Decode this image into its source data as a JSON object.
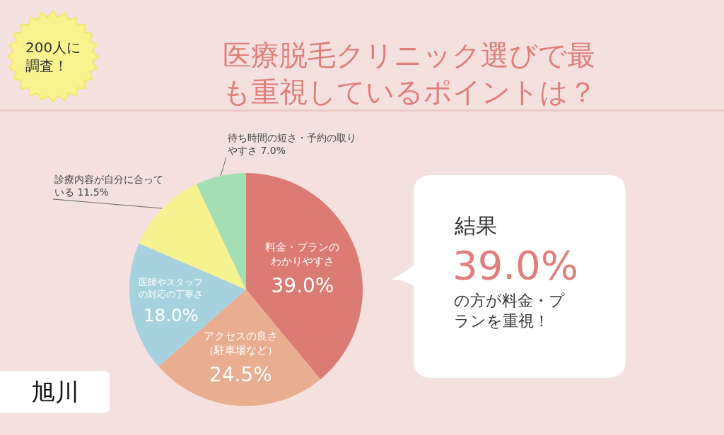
{
  "chart_data": {
    "type": "pie",
    "title": "医療脱毛クリニック選びで最も重視しているポイントは？",
    "categories": [
      "料金・プランのわかりやすさ",
      "アクセスの良さ（駐車場など）",
      "医師やスタッフの対応の丁寧さ",
      "診療内容が自分に合っている",
      "待ち時間の短さ・予約の取りやすさ"
    ],
    "values": [
      39.0,
      24.5,
      18.0,
      11.5,
      7.0
    ],
    "colors": [
      "#dc7b73",
      "#e9ad8f",
      "#a6d2e0",
      "#f6f28f",
      "#a3dfb3"
    ],
    "value_labels": [
      "39.0%",
      "24.5%",
      "18.0%",
      "11.5%",
      "7.0%"
    ],
    "annotations": [
      "200人に調査！",
      "旭川",
      "結果",
      "39.0%",
      "の方が料金・プランを重視！"
    ]
  }
}
